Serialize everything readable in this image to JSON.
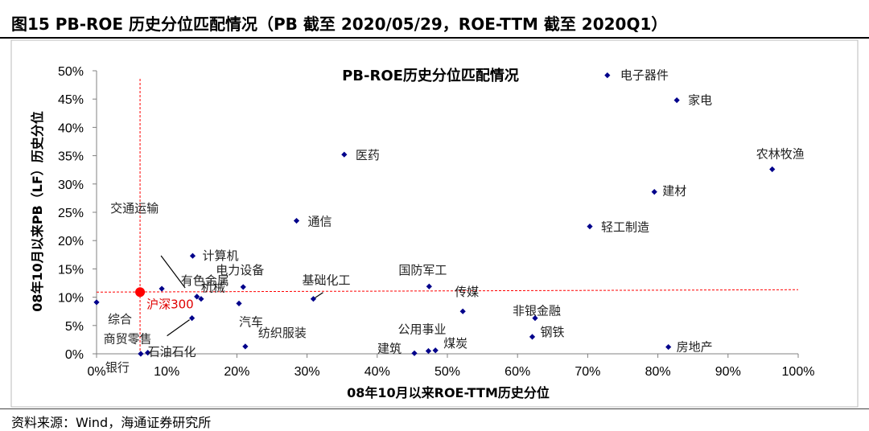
{
  "header": {
    "figure_title": "图15 PB-ROE 历史分位匹配情况（PB 截至 2020/05/29，ROE-TTM 截至 2020Q1）"
  },
  "footer": {
    "source": "资料来源：Wind，海通证券研究所"
  },
  "chart_data": {
    "type": "scatter",
    "title": "PB-ROE历史分位匹配情况",
    "xlabel": "08年10月以来ROE-TTM历史分位",
    "ylabel": "08年10月以来PB（LF）历史分位",
    "xlim": [
      0,
      1
    ],
    "ylim": [
      0,
      0.5
    ],
    "x_ticks": [
      "0%",
      "10%",
      "20%",
      "30%",
      "40%",
      "50%",
      "60%",
      "70%",
      "80%",
      "90%",
      "100%"
    ],
    "y_ticks": [
      "0%",
      "5%",
      "10%",
      "15%",
      "20%",
      "25%",
      "30%",
      "35%",
      "40%",
      "45%",
      "50%"
    ],
    "grid": false,
    "marker_color": "#00008b",
    "benchmark_color": "#ff0000",
    "points": [
      {
        "name": "电子器件",
        "x": 0.728,
        "y": 0.492
      },
      {
        "name": "家电",
        "x": 0.827,
        "y": 0.448
      },
      {
        "name": "农林牧渔",
        "x": 0.963,
        "y": 0.326
      },
      {
        "name": "医药",
        "x": 0.353,
        "y": 0.352
      },
      {
        "name": "建材",
        "x": 0.795,
        "y": 0.286
      },
      {
        "name": "通信",
        "x": 0.285,
        "y": 0.235
      },
      {
        "name": "轻工制造",
        "x": 0.703,
        "y": 0.225
      },
      {
        "name": "交通运输",
        "x": 0.093,
        "y": 0.115
      },
      {
        "name": "计算机",
        "x": 0.137,
        "y": 0.173
      },
      {
        "name": "有色金属",
        "x": 0.143,
        "y": 0.101
      },
      {
        "name": "电力设备",
        "x": 0.209,
        "y": 0.118
      },
      {
        "name": "基础化工",
        "x": 0.309,
        "y": 0.097
      },
      {
        "name": "国防军工",
        "x": 0.474,
        "y": 0.119
      },
      {
        "name": "传媒",
        "x": 0.522,
        "y": 0.075
      },
      {
        "name": "综合",
        "x": 0.0,
        "y": 0.091
      },
      {
        "name": "机械",
        "x": 0.149,
        "y": 0.097
      },
      {
        "name": "汽车",
        "x": 0.203,
        "y": 0.089
      },
      {
        "name": "非银金融",
        "x": 0.625,
        "y": 0.063
      },
      {
        "name": "钢铁",
        "x": 0.621,
        "y": 0.03
      },
      {
        "name": "商贸零售",
        "x": 0.136,
        "y": 0.063
      },
      {
        "name": "纺织服装",
        "x": 0.212,
        "y": 0.013
      },
      {
        "name": "公用事业",
        "x": 0.473,
        "y": 0.005
      },
      {
        "name": "建筑",
        "x": 0.453,
        "y": 0.001
      },
      {
        "name": "煤炭",
        "x": 0.483,
        "y": 0.006
      },
      {
        "name": "房地产",
        "x": 0.815,
        "y": 0.012
      },
      {
        "name": "石油石化",
        "x": 0.073,
        "y": 0.002
      },
      {
        "name": "银行",
        "x": 0.063,
        "y": 0.0
      }
    ],
    "benchmark": {
      "name": "沪深300",
      "x": 0.062,
      "y": 0.109
    }
  }
}
